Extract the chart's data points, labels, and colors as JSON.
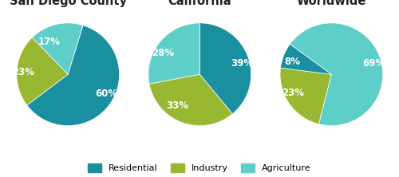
{
  "charts": [
    {
      "title": "San Diego County",
      "values": [
        60,
        23,
        17
      ],
      "labels": [
        "60%",
        "23%",
        "17%"
      ],
      "colors": [
        "#1a8fa0",
        "#99b832",
        "#5ecec8"
      ],
      "startangle": 73,
      "counterclock": false
    },
    {
      "title": "California",
      "values": [
        39,
        33,
        28
      ],
      "labels": [
        "39%",
        "33%",
        "28%"
      ],
      "colors": [
        "#1a8fa0",
        "#99b832",
        "#5ecec8"
      ],
      "startangle": 90,
      "counterclock": false
    },
    {
      "title": "Worldwide",
      "values": [
        69,
        23,
        8
      ],
      "labels": [
        "69%",
        "23%",
        "8%"
      ],
      "colors": [
        "#5ecec8",
        "#99b832",
        "#1a8fa0"
      ],
      "startangle": 144,
      "counterclock": false
    }
  ],
  "legend": [
    {
      "label": "Residential",
      "color": "#1a8fa0"
    },
    {
      "label": "Industry",
      "color": "#99b832"
    },
    {
      "label": "Agriculture",
      "color": "#5ecec8"
    }
  ],
  "background_color": "#ffffff",
  "text_color": "#ffffff",
  "title_color": "#222222",
  "title_fontsize": 10.5,
  "pct_fontsize": 8.5
}
